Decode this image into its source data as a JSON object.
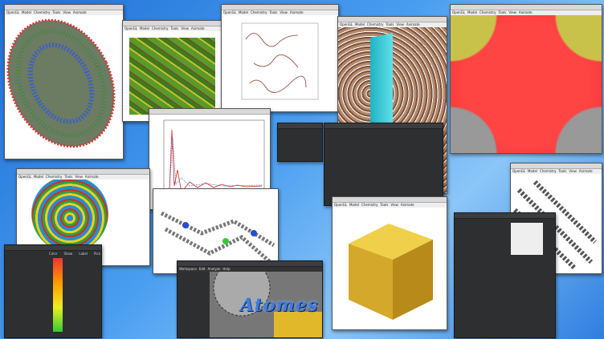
{
  "viewer_menu": {
    "items": [
      "OpenGL",
      "Model",
      "Chemistry",
      "Tools",
      "View",
      "Animate"
    ]
  },
  "workspace_menu": {
    "items": [
      "Workspace",
      "Edit",
      "Analyze",
      "Help"
    ]
  },
  "logo": {
    "text": "Atomes"
  },
  "color_table": {
    "headers": [
      "Color",
      "Show",
      "Label",
      "Pick"
    ]
  }
}
